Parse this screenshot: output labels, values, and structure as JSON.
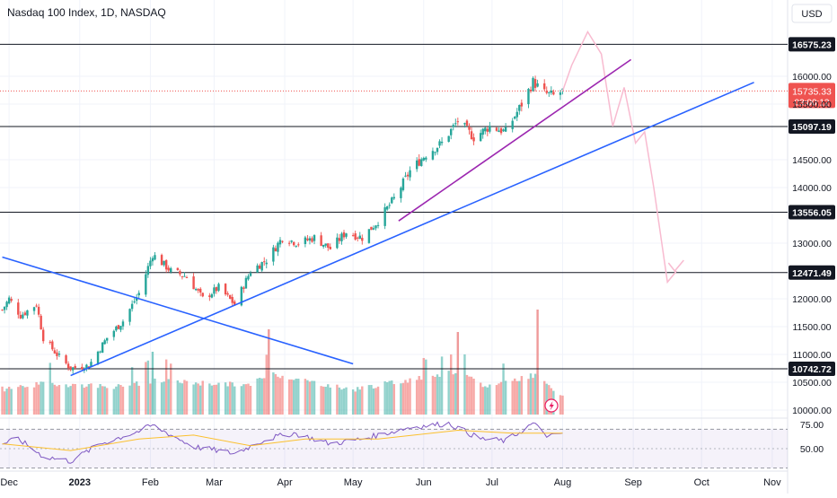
{
  "header": {
    "title": "Nasdaq 100 Index, 1D, NASDAQ",
    "currency": "USD"
  },
  "chart_data": {
    "type": "candlestick",
    "symbol": "NDX",
    "interval": "1D",
    "exchange": "NASDAQ",
    "price_axis": {
      "ticks": [
        "16000.00",
        "15500.00",
        "14500.00",
        "14000.00",
        "13000.00",
        "12000.00",
        "11500.00",
        "11000.00",
        "10500.00",
        "10000.00"
      ],
      "range": [
        9950,
        16900
      ]
    },
    "time_axis": {
      "labels": [
        "Dec",
        "2023",
        "Feb",
        "Mar",
        "Apr",
        "May",
        "Jun",
        "Jul",
        "Aug",
        "Sep",
        "Oct",
        "Nov"
      ]
    },
    "horizontal_levels": [
      {
        "label": "16575.23",
        "value": 16575.23
      },
      {
        "label": "15097.19",
        "value": 15097.19
      },
      {
        "label": "13556.05",
        "value": 13556.05
      },
      {
        "label": "12471.49",
        "value": 12471.49
      },
      {
        "label": "10742.72",
        "value": 10742.72
      }
    ],
    "last_price": {
      "label": "15735.33",
      "value": 15735.33,
      "countdown": "03:00:12"
    },
    "price_path": [
      {
        "date": "2022-11-28",
        "close": 11800
      },
      {
        "date": "2022-12-01",
        "close": 12000
      },
      {
        "date": "2022-12-06",
        "close": 11700
      },
      {
        "date": "2022-12-13",
        "close": 11900
      },
      {
        "date": "2022-12-16",
        "close": 11300
      },
      {
        "date": "2022-12-22",
        "close": 11000
      },
      {
        "date": "2022-12-28",
        "close": 10750
      },
      {
        "date": "2023-01-05",
        "close": 10800
      },
      {
        "date": "2023-01-13",
        "close": 11300
      },
      {
        "date": "2023-01-20",
        "close": 11600
      },
      {
        "date": "2023-01-27",
        "close": 12100
      },
      {
        "date": "2023-02-02",
        "close": 12800
      },
      {
        "date": "2023-02-10",
        "close": 12500
      },
      {
        "date": "2023-02-17",
        "close": 12400
      },
      {
        "date": "2023-02-24",
        "close": 12000
      },
      {
        "date": "2023-03-03",
        "close": 12200
      },
      {
        "date": "2023-03-10",
        "close": 11900
      },
      {
        "date": "2023-03-17",
        "close": 12500
      },
      {
        "date": "2023-03-24",
        "close": 12700
      },
      {
        "date": "2023-03-31",
        "close": 13100
      },
      {
        "date": "2023-04-07",
        "close": 13000
      },
      {
        "date": "2023-04-14",
        "close": 13100
      },
      {
        "date": "2023-04-21",
        "close": 12900
      },
      {
        "date": "2023-04-28",
        "close": 13200
      },
      {
        "date": "2023-05-05",
        "close": 13100
      },
      {
        "date": "2023-05-12",
        "close": 13400
      },
      {
        "date": "2023-05-19",
        "close": 13800
      },
      {
        "date": "2023-05-26",
        "close": 14300
      },
      {
        "date": "2023-06-02",
        "close": 14600
      },
      {
        "date": "2023-06-09",
        "close": 14800
      },
      {
        "date": "2023-06-16",
        "close": 15200
      },
      {
        "date": "2023-06-23",
        "close": 14900
      },
      {
        "date": "2023-06-30",
        "close": 15100
      },
      {
        "date": "2023-07-07",
        "close": 15000
      },
      {
        "date": "2023-07-14",
        "close": 15500
      },
      {
        "date": "2023-07-19",
        "close": 15900
      },
      {
        "date": "2023-07-24",
        "close": 15700
      },
      {
        "date": "2023-07-28",
        "close": 15650
      },
      {
        "date": "2023-08-01",
        "close": 15735.33
      }
    ],
    "projection_path": [
      {
        "date": "2023-08-01",
        "value": 15735.33
      },
      {
        "date": "2023-08-05",
        "value": 16200
      },
      {
        "date": "2023-08-12",
        "value": 16800
      },
      {
        "date": "2023-08-18",
        "value": 16400
      },
      {
        "date": "2023-08-23",
        "value": 15100
      },
      {
        "date": "2023-08-28",
        "value": 15800
      },
      {
        "date": "2023-09-02",
        "value": 14800
      },
      {
        "date": "2023-09-06",
        "value": 15000
      },
      {
        "date": "2023-09-10",
        "value": 14000
      },
      {
        "date": "2023-09-16",
        "value": 12300
      },
      {
        "date": "2023-09-20",
        "value": 12500
      }
    ],
    "trendlines": [
      {
        "name": "",
        "color": "#2962ff",
        "from": {
          "date": "2022-11-28",
          "value": 12750
        },
        "to": {
          "date": "2023-05-01",
          "value": 10830
        }
      },
      {
        "name": "",
        "color": "#2962ff",
        "from": {
          "date": "2022-12-28",
          "value": 10620
        },
        "to": {
          "date": "2023-10-24",
          "value": 15890
        }
      },
      {
        "name": "",
        "color": "#9c27b0",
        "from": {
          "date": "2023-05-21",
          "value": 13400
        },
        "to": {
          "date": "2023-08-31",
          "value": 16300
        }
      }
    ],
    "volume": {
      "note_colors": {
        "up": "#26a69a",
        "down": "#ef5350"
      },
      "bars": [
        {
          "date": "2022-11-28",
          "value": 0.42,
          "dir": "down"
        },
        {
          "date": "2022-12-10",
          "value": 0.55,
          "dir": "up"
        },
        {
          "date": "2022-12-18",
          "value": 0.6,
          "dir": "down"
        },
        {
          "date": "2023-01-20",
          "value": 0.5,
          "dir": "up"
        },
        {
          "date": "2023-02-02",
          "value": 0.7,
          "dir": "up"
        },
        {
          "date": "2023-03-17",
          "value": 0.55,
          "dir": "down"
        },
        {
          "date": "2023-03-25",
          "value": 0.95,
          "dir": "down"
        },
        {
          "date": "2023-04-30",
          "value": 0.4,
          "dir": "down"
        },
        {
          "date": "2023-06-16",
          "value": 1.0,
          "dir": "down"
        },
        {
          "date": "2023-06-28",
          "value": 0.5,
          "dir": "up"
        },
        {
          "date": "2023-07-21",
          "value": 0.92,
          "dir": "down"
        },
        {
          "date": "2023-08-01",
          "value": 0.15,
          "dir": "down"
        }
      ]
    },
    "rsi": {
      "ticks": [
        "75.00",
        "50.00"
      ],
      "upper": 70,
      "lower": 30,
      "range": [
        25,
        80
      ],
      "values": [
        {
          "date": "2022-11-28",
          "value": 55
        },
        {
          "date": "2022-12-05",
          "value": 60
        },
        {
          "date": "2022-12-16",
          "value": 42
        },
        {
          "date": "2022-12-28",
          "value": 37
        },
        {
          "date": "2023-01-10",
          "value": 55
        },
        {
          "date": "2023-01-27",
          "value": 68
        },
        {
          "date": "2023-02-02",
          "value": 74
        },
        {
          "date": "2023-02-20",
          "value": 52
        },
        {
          "date": "2023-03-10",
          "value": 45
        },
        {
          "date": "2023-03-24",
          "value": 60
        },
        {
          "date": "2023-04-05",
          "value": 66
        },
        {
          "date": "2023-04-21",
          "value": 55
        },
        {
          "date": "2023-05-05",
          "value": 60
        },
        {
          "date": "2023-05-26",
          "value": 72
        },
        {
          "date": "2023-06-12",
          "value": 76
        },
        {
          "date": "2023-06-26",
          "value": 60
        },
        {
          "date": "2023-07-07",
          "value": 58
        },
        {
          "date": "2023-07-19",
          "value": 76
        },
        {
          "date": "2023-07-26",
          "value": 62
        },
        {
          "date": "2023-08-01",
          "value": 66
        }
      ],
      "ma_values": [
        {
          "date": "2022-11-28",
          "value": 55
        },
        {
          "date": "2022-12-28",
          "value": 48
        },
        {
          "date": "2023-01-27",
          "value": 60
        },
        {
          "date": "2023-02-20",
          "value": 64
        },
        {
          "date": "2023-03-17",
          "value": 53
        },
        {
          "date": "2023-04-10",
          "value": 60
        },
        {
          "date": "2023-05-12",
          "value": 60
        },
        {
          "date": "2023-06-16",
          "value": 69
        },
        {
          "date": "2023-07-10",
          "value": 66
        },
        {
          "date": "2023-08-01",
          "value": 66
        }
      ]
    }
  }
}
